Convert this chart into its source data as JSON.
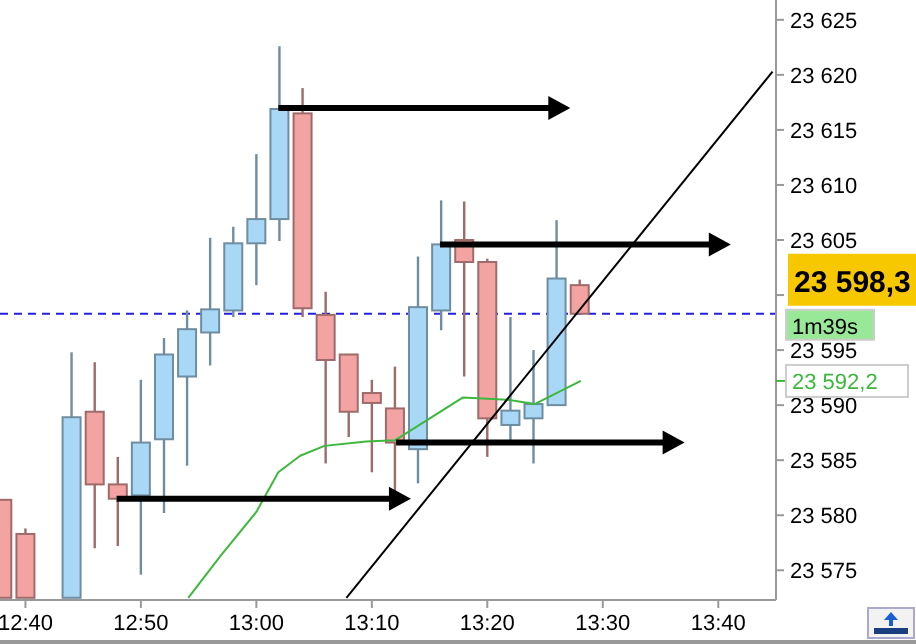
{
  "chart_data": {
    "type": "candlestick",
    "x": [
      12.6333,
      12.6667,
      12.7333,
      12.7667,
      12.8,
      12.8333,
      12.8667,
      12.9,
      12.9333,
      12.9667,
      13.0,
      13.0333,
      13.0667,
      13.1,
      13.1333,
      13.1667,
      13.2,
      13.2333,
      13.2667,
      13.3,
      13.3333,
      13.3667,
      13.4,
      13.4333,
      13.4667
    ],
    "ohlc": [
      [
        23581.4,
        23581.4,
        23572.5,
        23572.5
      ],
      [
        23578.3,
        23578.8,
        23572.5,
        23572.5
      ],
      [
        23572.5,
        23594.8,
        23572.5,
        23588.9
      ],
      [
        23589.4,
        23593.9,
        23577.0,
        23582.8
      ],
      [
        23582.8,
        23585.3,
        23577.2,
        23581.5
      ],
      [
        23581.8,
        23592.3,
        23574.6,
        23586.6
      ],
      [
        23586.9,
        23596.1,
        23580.2,
        23594.6
      ],
      [
        23592.6,
        23598.6,
        23584.5,
        23596.9
      ],
      [
        23596.6,
        23605.2,
        23593.6,
        23598.7
      ],
      [
        23598.6,
        23606.2,
        23598.0,
        23604.7
      ],
      [
        23604.7,
        23612.8,
        23600.9,
        23606.9
      ],
      [
        23606.9,
        23622.6,
        23604.9,
        23616.9
      ],
      [
        23616.5,
        23618.8,
        23598.0,
        23598.8
      ],
      [
        23598.2,
        23600.3,
        23584.7,
        23594.1
      ],
      [
        23594.6,
        23594.6,
        23587.1,
        23589.4
      ],
      [
        23591.1,
        23592.3,
        23583.9,
        23590.2
      ],
      [
        23589.7,
        23593.5,
        23582.0,
        23586.6
      ],
      [
        23586.0,
        23603.5,
        23582.9,
        23598.9
      ],
      [
        23598.6,
        23608.6,
        23596.8,
        23604.6
      ],
      [
        23605.0,
        23608.5,
        23592.6,
        23603.0
      ],
      [
        23603.0,
        23603.3,
        23585.3,
        23588.8
      ],
      [
        23588.2,
        23598.0,
        23586.8,
        23589.5
      ],
      [
        23588.8,
        23595.0,
        23584.7,
        23590.1
      ],
      [
        23590.0,
        23606.8,
        23590.0,
        23601.5
      ],
      [
        23600.9,
        23601.4,
        23598.3,
        23598.3
      ]
    ],
    "colors": [
      "#f4a3a3",
      "#f4a3a3",
      "#a9d8f7",
      "#f4a3a3",
      "#f4a3a3",
      "#a9d8f7",
      "#a9d8f7",
      "#a9d8f7",
      "#a9d8f7",
      "#a9d8f7",
      "#a9d8f7",
      "#a9d8f7",
      "#f4a3a3",
      "#f4a3a3",
      "#f4a3a3",
      "#f4a3a3",
      "#f4a3a3",
      "#a9d8f7",
      "#a9d8f7",
      "#f4a3a3",
      "#f4a3a3",
      "#a9d8f7",
      "#a9d8f7",
      "#a9d8f7",
      "#f4a3a3"
    ],
    "series": [
      {
        "type": "line",
        "color": "#3cb83c",
        "x": [
          12.9017,
          12.9483,
          13.0,
          13.0317,
          13.0633,
          13.0983,
          13.1583,
          13.2,
          13.2983,
          13.3617,
          13.4017,
          13.4683
        ],
        "values": [
          23572.5,
          23576.3,
          23580.3,
          23583.9,
          23585.4,
          23586.3,
          23586.7,
          23586.8,
          23590.7,
          23590.5,
          23590.1,
          23592.2
        ]
      },
      {
        "type": "line",
        "color": "#000000",
        "x": [
          13.13,
          13.745
        ],
        "values": [
          23572.5,
          23620.3
        ]
      },
      {
        "type": "line",
        "color": "#000000",
        "x": [
          13.0317,
          13.43
        ],
        "values": [
          23617.0,
          23617.0
        ]
      },
      {
        "type": "line",
        "color": "#000000",
        "x": [
          12.7983,
          13.2
        ],
        "values": [
          23581.5,
          23581.5
        ]
      },
      {
        "type": "line",
        "color": "#000000",
        "x": [
          13.265,
          13.6617
        ],
        "values": [
          23604.6,
          23604.6
        ]
      },
      {
        "type": "line",
        "color": "#000000",
        "x": [
          13.2017,
          13.595
        ],
        "values": [
          23586.6,
          23586.6
        ]
      }
    ],
    "ref_lines": [
      {
        "axis": "y",
        "value": 23598.3,
        "label": "23 598,3",
        "color": "#2222dd",
        "line_style": "dashed"
      }
    ],
    "annotations": [
      "1m39s",
      "23 592,2"
    ],
    "xlim": [
      12.63,
      13.75
    ],
    "xticks": [
      {
        "value": 12.6667,
        "label": "12:40"
      },
      {
        "value": 12.8333,
        "label": "12:50"
      },
      {
        "value": 13.0,
        "label": "13:00"
      },
      {
        "value": 13.1667,
        "label": "13:10"
      },
      {
        "value": 13.3333,
        "label": "13:20"
      },
      {
        "value": 13.5,
        "label": "13:30"
      },
      {
        "value": 13.6667,
        "label": "13:40"
      }
    ],
    "ylim": [
      23572.3,
      23626.8
    ],
    "yticks": [
      {
        "value": 23575,
        "label": "23 575"
      },
      {
        "value": 23580,
        "label": "23 580"
      },
      {
        "value": 23585,
        "label": "23 585"
      },
      {
        "value": 23590,
        "label": "23 590"
      },
      {
        "value": 23595,
        "label": "23 595"
      },
      {
        "value": 23600,
        "label": null
      },
      {
        "value": 23605,
        "label": "23 605"
      },
      {
        "value": 23610,
        "label": "23 610"
      },
      {
        "value": 23615,
        "label": "23 615"
      },
      {
        "value": 23620,
        "label": "23 620"
      },
      {
        "value": 23625,
        "label": "23 625"
      }
    ],
    "grid": false
  }
}
